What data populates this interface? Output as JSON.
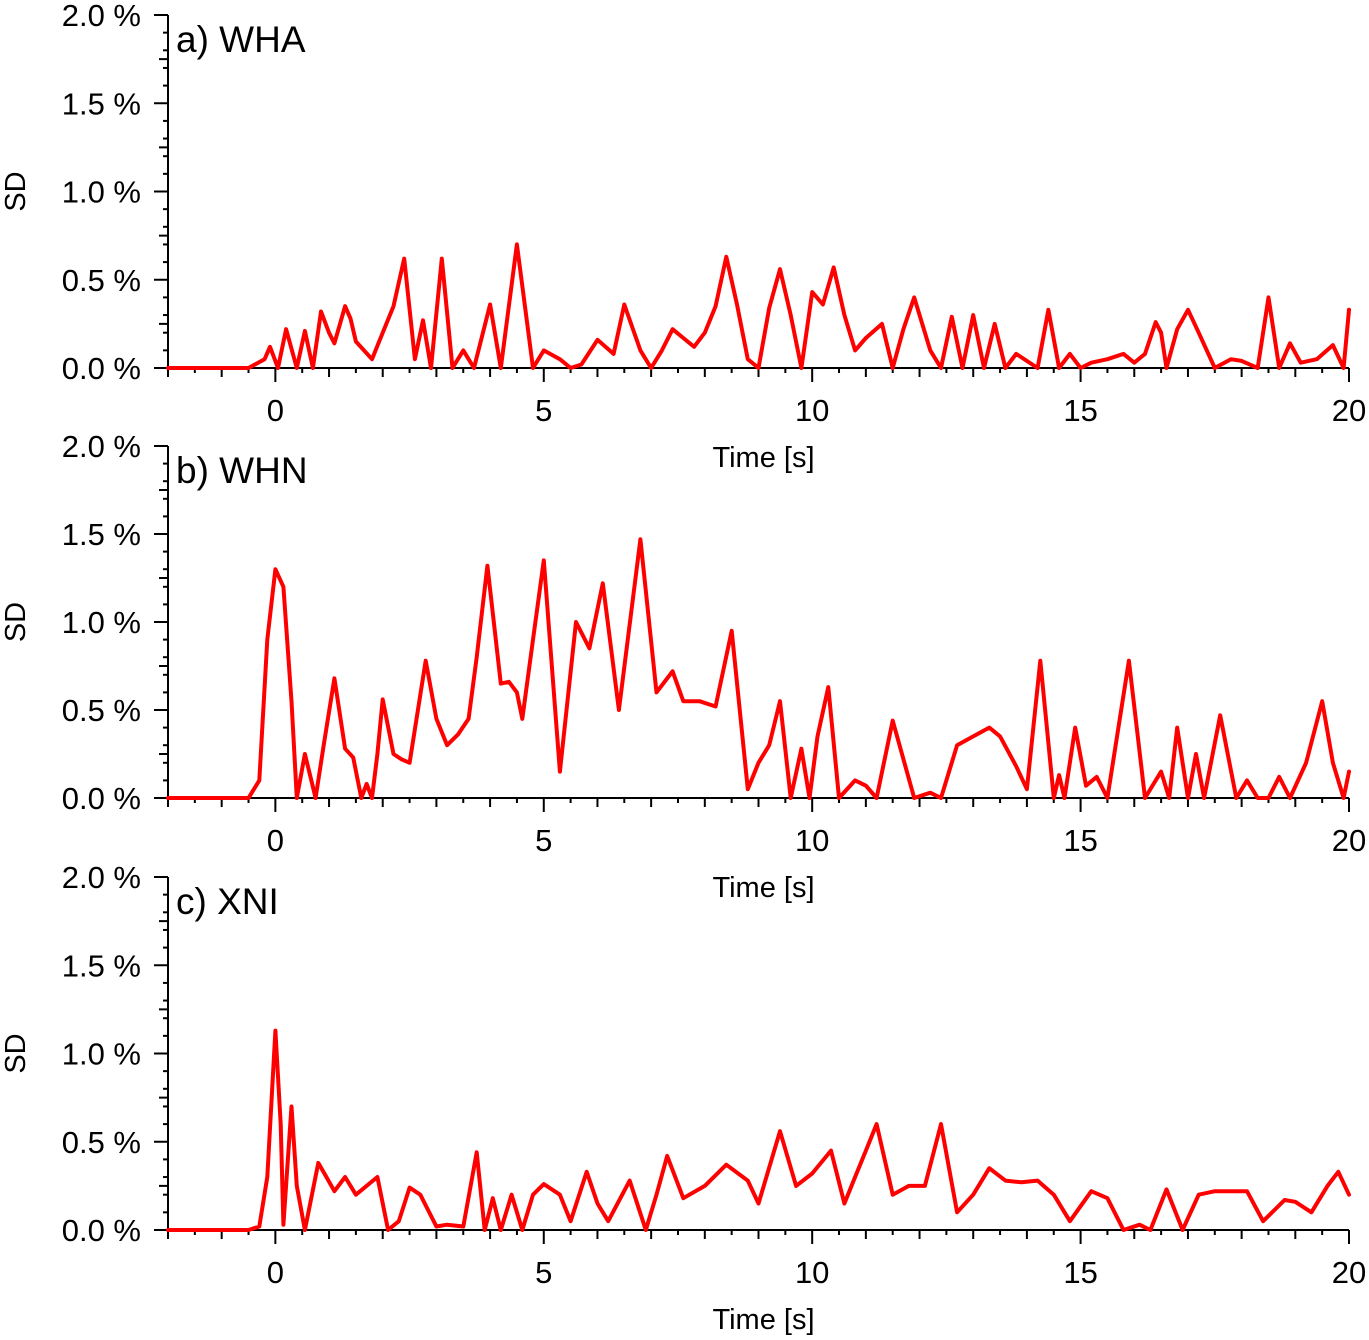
{
  "chart_data": [
    {
      "type": "line",
      "panel_label": "a) WHA",
      "xlabel": "Time [s]",
      "ylabel": "SD",
      "xlim": [
        -2,
        20
      ],
      "ylim": [
        0,
        2.0
      ],
      "x_ticks": [
        0,
        5,
        10,
        15,
        20
      ],
      "y_ticks": [
        0.0,
        0.5,
        1.0,
        1.5,
        2.0
      ],
      "x_tick_labels": [
        "0",
        "5",
        "10",
        "15",
        "20"
      ],
      "y_tick_labels": [
        "0.0 %",
        "0.5 %",
        "1.0 %",
        "1.5 %",
        "2.0 %"
      ],
      "series": [
        {
          "name": "WHA",
          "color": "#ff0000",
          "x": [
            -2,
            -0.5,
            -0.2,
            -0.1,
            0.05,
            0.2,
            0.4,
            0.55,
            0.7,
            0.85,
            1.0,
            1.1,
            1.3,
            1.4,
            1.5,
            1.8,
            2.0,
            2.2,
            2.4,
            2.6,
            2.75,
            2.9,
            3.1,
            3.3,
            3.5,
            3.7,
            4.0,
            4.2,
            4.5,
            4.8,
            5.0,
            5.3,
            5.5,
            5.7,
            6.0,
            6.3,
            6.5,
            6.8,
            7.0,
            7.2,
            7.4,
            7.6,
            7.8,
            8.0,
            8.2,
            8.4,
            8.6,
            8.8,
            9.0,
            9.2,
            9.4,
            9.6,
            9.8,
            10.0,
            10.2,
            10.4,
            10.6,
            10.8,
            11.0,
            11.3,
            11.5,
            11.7,
            11.9,
            12.2,
            12.4,
            12.6,
            12.8,
            13.0,
            13.2,
            13.4,
            13.6,
            13.8,
            14.2,
            14.4,
            14.6,
            14.8,
            15.0,
            15.2,
            15.5,
            15.8,
            16.0,
            16.2,
            16.4,
            16.5,
            16.6,
            16.8,
            17.0,
            17.2,
            17.5,
            17.8,
            18.0,
            18.3,
            18.5,
            18.7,
            18.9,
            19.1,
            19.4,
            19.7,
            19.9,
            20.0
          ],
          "y": [
            0.0,
            0.0,
            0.05,
            0.12,
            0.0,
            0.22,
            0.0,
            0.21,
            0.0,
            0.32,
            0.2,
            0.14,
            0.35,
            0.28,
            0.15,
            0.05,
            0.2,
            0.35,
            0.62,
            0.05,
            0.27,
            0.0,
            0.62,
            0.0,
            0.1,
            0.0,
            0.36,
            0.0,
            0.7,
            0.0,
            0.1,
            0.05,
            0.0,
            0.02,
            0.16,
            0.08,
            0.36,
            0.1,
            0.0,
            0.1,
            0.22,
            0.17,
            0.12,
            0.2,
            0.35,
            0.63,
            0.36,
            0.05,
            0.0,
            0.34,
            0.56,
            0.3,
            0.0,
            0.43,
            0.36,
            0.57,
            0.3,
            0.1,
            0.17,
            0.25,
            0.0,
            0.22,
            0.4,
            0.1,
            0.0,
            0.29,
            0.0,
            0.3,
            0.0,
            0.25,
            0.0,
            0.08,
            0.0,
            0.33,
            0.0,
            0.08,
            0.0,
            0.03,
            0.05,
            0.08,
            0.03,
            0.08,
            0.26,
            0.2,
            0.0,
            0.22,
            0.33,
            0.2,
            0.0,
            0.05,
            0.04,
            0.0,
            0.4,
            0.0,
            0.14,
            0.03,
            0.05,
            0.13,
            0.0,
            0.33
          ]
        }
      ]
    },
    {
      "type": "line",
      "panel_label": "b) WHN",
      "xlabel": "Time [s]",
      "ylabel": "SD",
      "xlim": [
        -2,
        20
      ],
      "ylim": [
        0,
        2.0
      ],
      "x_ticks": [
        0,
        5,
        10,
        15,
        20
      ],
      "y_ticks": [
        0.0,
        0.5,
        1.0,
        1.5,
        2.0
      ],
      "x_tick_labels": [
        "0",
        "5",
        "10",
        "15",
        "20"
      ],
      "y_tick_labels": [
        "0.0 %",
        "0.5 %",
        "1.0 %",
        "1.5 %",
        "2.0 %"
      ],
      "series": [
        {
          "name": "WHN",
          "color": "#ff0000",
          "x": [
            -2,
            -0.5,
            -0.3,
            -0.15,
            0.0,
            0.15,
            0.3,
            0.4,
            0.55,
            0.75,
            0.9,
            1.1,
            1.3,
            1.45,
            1.6,
            1.7,
            1.8,
            1.9,
            2.0,
            2.2,
            2.35,
            2.5,
            2.8,
            3.0,
            3.2,
            3.4,
            3.6,
            3.75,
            3.95,
            4.2,
            4.35,
            4.5,
            4.6,
            4.8,
            5.0,
            5.3,
            5.6,
            5.85,
            6.1,
            6.4,
            6.8,
            7.1,
            7.4,
            7.6,
            7.9,
            8.2,
            8.5,
            8.8,
            9.0,
            9.2,
            9.4,
            9.6,
            9.8,
            9.95,
            10.1,
            10.3,
            10.5,
            10.8,
            11.0,
            11.2,
            11.5,
            11.9,
            12.2,
            12.4,
            12.7,
            13.0,
            13.3,
            13.5,
            13.8,
            14.0,
            14.25,
            14.5,
            14.6,
            14.7,
            14.9,
            15.1,
            15.3,
            15.5,
            15.9,
            16.2,
            16.5,
            16.65,
            16.8,
            17.0,
            17.15,
            17.3,
            17.6,
            17.9,
            18.1,
            18.3,
            18.5,
            18.7,
            18.9,
            19.2,
            19.5,
            19.7,
            19.9,
            20.0
          ],
          "y": [
            0.0,
            0.0,
            0.1,
            0.9,
            1.3,
            1.2,
            0.55,
            0.0,
            0.25,
            0.0,
            0.3,
            0.68,
            0.28,
            0.23,
            0.0,
            0.08,
            0.0,
            0.25,
            0.56,
            0.25,
            0.22,
            0.2,
            0.78,
            0.45,
            0.3,
            0.36,
            0.45,
            0.8,
            1.32,
            0.65,
            0.66,
            0.6,
            0.45,
            0.9,
            1.35,
            0.15,
            1.0,
            0.85,
            1.22,
            0.5,
            1.47,
            0.6,
            0.72,
            0.55,
            0.55,
            0.52,
            0.95,
            0.05,
            0.2,
            0.3,
            0.55,
            0.0,
            0.28,
            0.0,
            0.35,
            0.63,
            0.0,
            0.1,
            0.07,
            0.0,
            0.44,
            0.0,
            0.03,
            0.0,
            0.3,
            0.35,
            0.4,
            0.35,
            0.18,
            0.05,
            0.78,
            0.0,
            0.13,
            0.0,
            0.4,
            0.07,
            0.12,
            0.0,
            0.78,
            0.0,
            0.15,
            0.0,
            0.4,
            0.0,
            0.25,
            0.0,
            0.47,
            0.0,
            0.1,
            0.0,
            0.0,
            0.12,
            0.0,
            0.2,
            0.55,
            0.2,
            0.0,
            0.15
          ]
        }
      ]
    },
    {
      "type": "line",
      "panel_label": "c) XNI",
      "xlabel": "Time [s]",
      "ylabel": "SD",
      "xlim": [
        -2,
        20
      ],
      "ylim": [
        0,
        2.0
      ],
      "x_ticks": [
        0,
        5,
        10,
        15,
        20
      ],
      "y_ticks": [
        0.0,
        0.5,
        1.0,
        1.5,
        2.0
      ],
      "x_tick_labels": [
        "0",
        "5",
        "10",
        "15",
        "20"
      ],
      "y_tick_labels": [
        "0.0 %",
        "0.5 %",
        "1.0 %",
        "1.5 %",
        "2.0 %"
      ],
      "series": [
        {
          "name": "XNI",
          "color": "#ff0000",
          "x": [
            -2,
            -0.5,
            -0.3,
            -0.15,
            0.0,
            0.1,
            0.15,
            0.3,
            0.4,
            0.55,
            0.8,
            0.95,
            1.1,
            1.3,
            1.5,
            1.9,
            2.1,
            2.3,
            2.5,
            2.7,
            3.0,
            3.2,
            3.5,
            3.75,
            3.9,
            4.05,
            4.2,
            4.4,
            4.6,
            4.8,
            5.0,
            5.3,
            5.5,
            5.8,
            6.0,
            6.2,
            6.6,
            6.9,
            7.1,
            7.3,
            7.6,
            8.0,
            8.4,
            8.8,
            9.0,
            9.4,
            9.7,
            10.0,
            10.35,
            10.6,
            10.8,
            11.0,
            11.2,
            11.5,
            11.8,
            12.1,
            12.4,
            12.7,
            13.0,
            13.3,
            13.6,
            13.9,
            14.2,
            14.5,
            14.8,
            15.2,
            15.5,
            15.8,
            16.1,
            16.3,
            16.6,
            16.9,
            17.2,
            17.5,
            17.8,
            18.1,
            18.4,
            18.8,
            19.0,
            19.3,
            19.6,
            19.8,
            20.0
          ],
          "y": [
            0.0,
            0.0,
            0.02,
            0.3,
            1.13,
            0.6,
            0.03,
            0.7,
            0.25,
            0.0,
            0.38,
            0.3,
            0.22,
            0.3,
            0.2,
            0.3,
            0.0,
            0.05,
            0.24,
            0.2,
            0.02,
            0.03,
            0.02,
            0.44,
            0.0,
            0.18,
            0.0,
            0.2,
            0.0,
            0.2,
            0.26,
            0.2,
            0.05,
            0.33,
            0.15,
            0.05,
            0.28,
            0.0,
            0.2,
            0.42,
            0.18,
            0.25,
            0.37,
            0.28,
            0.15,
            0.56,
            0.25,
            0.32,
            0.45,
            0.15,
            0.3,
            0.45,
            0.6,
            0.2,
            0.25,
            0.25,
            0.6,
            0.1,
            0.2,
            0.35,
            0.28,
            0.27,
            0.28,
            0.2,
            0.05,
            0.22,
            0.18,
            0.0,
            0.03,
            0.0,
            0.23,
            0.0,
            0.2,
            0.22,
            0.22,
            0.22,
            0.05,
            0.17,
            0.16,
            0.1,
            0.25,
            0.33,
            0.2
          ]
        }
      ]
    }
  ]
}
